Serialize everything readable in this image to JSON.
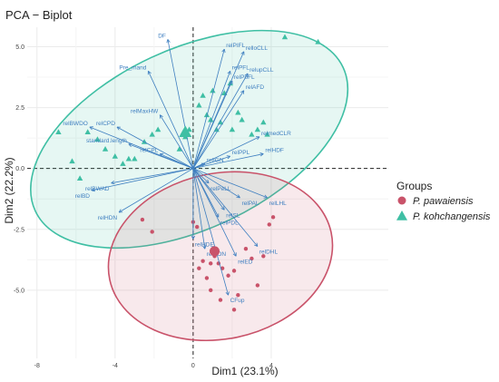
{
  "chart_data": {
    "type": "scatter",
    "title": "PCA − Biplot",
    "xlabel": "Dim1 (23.1%)",
    "ylabel": "Dim2 (22.2%)",
    "xlim": [
      -8.5,
      10
    ],
    "ylim": [
      -7.8,
      5.8
    ],
    "xticks": [
      -8,
      -4,
      0,
      4
    ],
    "yticks": [
      -5.0,
      -2.5,
      0.0,
      2.5,
      5.0
    ],
    "ytick_labels": [
      "-5.0",
      "-2.5",
      "0.0",
      "2.5",
      "5.0"
    ],
    "grid": true,
    "legend_position": "right",
    "legend_title": "Groups",
    "series": [
      {
        "name": "P. pawaiensis",
        "color": "#c9536a",
        "marker": "circle",
        "centroid": [
          1.1,
          -3.4
        ],
        "ellipse": {
          "cx": 1.4,
          "cy": -3.6,
          "rx": 5.8,
          "ry": 3.4,
          "angle_deg": 12
        },
        "points": [
          [
            -2.6,
            -2.1
          ],
          [
            -2.1,
            -2.6
          ],
          [
            0.0,
            -2.2
          ],
          [
            0.2,
            -2.4
          ],
          [
            0.3,
            -4.1
          ],
          [
            0.5,
            -3.8
          ],
          [
            0.7,
            -4.5
          ],
          [
            0.9,
            -3.9
          ],
          [
            1.1,
            -3.6
          ],
          [
            1.3,
            -3.9
          ],
          [
            1.5,
            -4.1
          ],
          [
            0.9,
            -5.0
          ],
          [
            1.4,
            -5.4
          ],
          [
            1.8,
            -4.4
          ],
          [
            2.1,
            -4.2
          ],
          [
            2.3,
            -5.2
          ],
          [
            2.1,
            -5.8
          ],
          [
            2.7,
            -3.3
          ],
          [
            3.0,
            -3.7
          ],
          [
            3.3,
            -4.8
          ],
          [
            3.6,
            -3.6
          ],
          [
            3.9,
            -2.3
          ],
          [
            4.1,
            -2.0
          ]
        ]
      },
      {
        "name": "P. kohchangensis",
        "color": "#3fbfa4",
        "marker": "triangle",
        "centroid": [
          -0.4,
          1.5
        ],
        "ellipse": {
          "cx": -0.2,
          "cy": 1.2,
          "rx": 8.7,
          "ry": 3.7,
          "angle_deg": 25
        },
        "points": [
          [
            -6.9,
            1.5
          ],
          [
            -6.2,
            0.3
          ],
          [
            -5.8,
            -0.4
          ],
          [
            -5.4,
            1.5
          ],
          [
            -4.9,
            1.2
          ],
          [
            -4.5,
            0.8
          ],
          [
            -4.0,
            0.5
          ],
          [
            -3.6,
            0.2
          ],
          [
            -3.3,
            0.4
          ],
          [
            -3.0,
            0.4
          ],
          [
            -2.5,
            1.1
          ],
          [
            -2.1,
            1.4
          ],
          [
            -1.8,
            1.6
          ],
          [
            -0.7,
            0.8
          ],
          [
            -0.5,
            1.5
          ],
          [
            -0.4,
            1.3
          ],
          [
            -0.2,
            1.6
          ],
          [
            0.3,
            2.6
          ],
          [
            0.5,
            3.0
          ],
          [
            0.7,
            2.2
          ],
          [
            0.9,
            2.0
          ],
          [
            1.0,
            3.2
          ],
          [
            1.2,
            1.6
          ],
          [
            1.4,
            1.9
          ],
          [
            1.6,
            3.1
          ],
          [
            1.9,
            3.5
          ],
          [
            2.0,
            1.6
          ],
          [
            2.3,
            2.3
          ],
          [
            2.5,
            2.0
          ],
          [
            3.0,
            1.4
          ],
          [
            3.3,
            1.6
          ],
          [
            3.6,
            1.9
          ],
          [
            3.8,
            1.4
          ],
          [
            4.7,
            5.4
          ],
          [
            6.4,
            5.2
          ]
        ]
      }
    ],
    "variables": [
      {
        "name": "DF",
        "x": -1.3,
        "y": 5.3
      },
      {
        "name": "Pre_mand",
        "x": -2.3,
        "y": 4.0
      },
      {
        "name": "relPIFL",
        "x": 1.6,
        "y": 4.9
      },
      {
        "name": "relloCLL",
        "x": 2.6,
        "y": 4.8
      },
      {
        "name": "relPFL",
        "x": 1.9,
        "y": 4.0
      },
      {
        "name": "relupCLL",
        "x": 2.8,
        "y": 3.9
      },
      {
        "name": "relPoFL",
        "x": 2.0,
        "y": 3.6
      },
      {
        "name": "relAFD",
        "x": 2.6,
        "y": 3.2
      },
      {
        "name": "relMaxHW",
        "x": -1.7,
        "y": 2.2
      },
      {
        "name": "relCPD",
        "x": -3.9,
        "y": 1.7
      },
      {
        "name": "relBWDO",
        "x": -5.3,
        "y": 1.7
      },
      {
        "name": "standard.length",
        "x": -3.3,
        "y": 1.0
      },
      {
        "name": "relmedCLR",
        "x": 3.4,
        "y": 1.3
      },
      {
        "name": "relCPL",
        "x": -1.7,
        "y": 0.6
      },
      {
        "name": "relHDF",
        "x": 3.6,
        "y": 0.6
      },
      {
        "name": "relPPL",
        "x": 1.9,
        "y": 0.5
      },
      {
        "name": "relIGN",
        "x": 0.6,
        "y": 0.2
      },
      {
        "name": "relBWAD",
        "x": -4.2,
        "y": -0.6
      },
      {
        "name": "relBD",
        "x": -5.2,
        "y": -0.9
      },
      {
        "name": "relPeLL",
        "x": 0.8,
        "y": -0.6
      },
      {
        "name": "relHDN",
        "x": -3.8,
        "y": -1.8
      },
      {
        "name": "relPAL",
        "x": 2.4,
        "y": -1.2
      },
      {
        "name": "relLHL",
        "x": 3.8,
        "y": -1.2
      },
      {
        "name": "relSL",
        "x": 1.6,
        "y": -1.7
      },
      {
        "name": "relPDL",
        "x": 1.3,
        "y": -2.0
      },
      {
        "name": "relHDE",
        "x": 0.0,
        "y": -2.9
      },
      {
        "name": "relSON",
        "x": 0.6,
        "y": -3.3
      },
      {
        "name": "relDHL",
        "x": 3.3,
        "y": -3.2
      },
      {
        "name": "relED",
        "x": 2.2,
        "y": -3.6
      },
      {
        "name": "CFup",
        "x": 1.8,
        "y": -5.2
      }
    ]
  }
}
